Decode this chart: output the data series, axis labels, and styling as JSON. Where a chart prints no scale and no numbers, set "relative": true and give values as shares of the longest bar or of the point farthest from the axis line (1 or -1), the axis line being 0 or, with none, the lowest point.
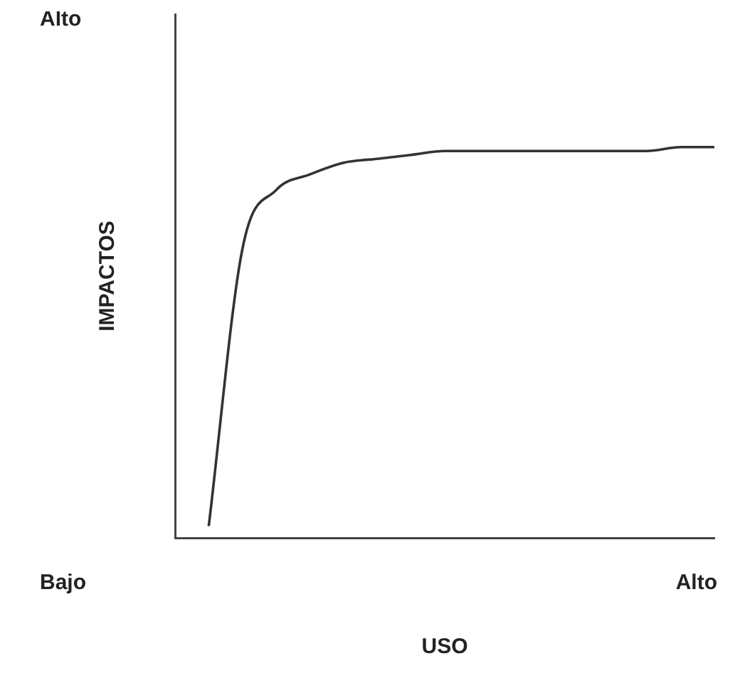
{
  "chart_data": {
    "type": "line",
    "relative": true,
    "xlabel": "USO",
    "ylabel": "IMPACTOS",
    "annotations": [
      "Alto",
      "Bajo",
      "Alto"
    ],
    "categories": [
      null,
      null,
      null,
      null,
      null,
      null,
      null,
      null,
      null,
      null,
      null,
      null,
      null,
      null,
      null,
      null,
      null
    ],
    "series": [
      {
        "color": "#333333",
        "values": [
          null,
          0.03,
          0.74,
          0.89,
          0.93,
          0.96,
          0.97,
          0.98,
          0.99,
          0.99,
          0.99,
          0.99,
          0.99,
          0.99,
          0.99,
          1.0,
          1.0
        ]
      }
    ]
  }
}
